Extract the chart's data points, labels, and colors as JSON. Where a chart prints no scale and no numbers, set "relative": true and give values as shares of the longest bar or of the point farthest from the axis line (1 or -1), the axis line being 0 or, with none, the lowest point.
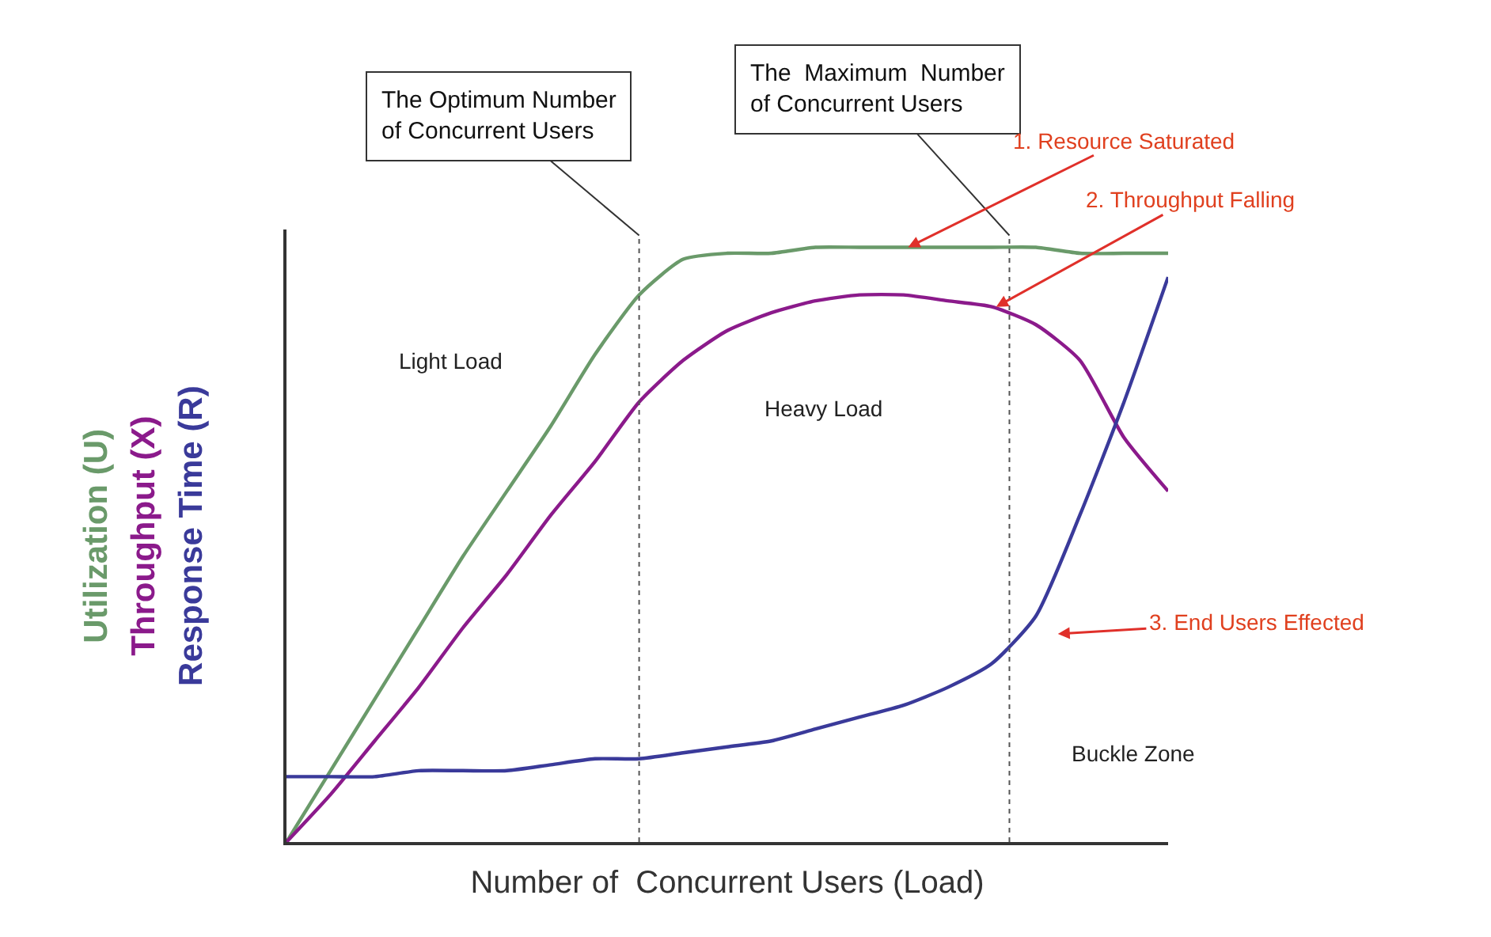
{
  "chart_data": {
    "type": "line",
    "relative": true,
    "xlabel": "Number of  Concurrent Users (Load)",
    "categories": [
      null,
      null,
      null,
      null,
      null,
      null,
      null,
      null,
      null,
      null,
      null,
      null,
      null,
      null,
      null,
      null,
      null,
      null,
      null,
      null,
      null
    ],
    "series": [
      {
        "name": "Utilization (U)",
        "color": "#6a9a6a",
        "values": [
          0,
          0.12,
          0.24,
          0.36,
          0.48,
          0.59,
          0.7,
          0.82,
          0.92,
          0.98,
          0.99,
          0.99,
          1.0,
          1.0,
          1.0,
          1.0,
          1.0,
          1.0,
          0.99,
          0.99,
          0.99
        ]
      },
      {
        "name": "Throughput (X)",
        "color": "#8b1a8b",
        "values": [
          0,
          0.08,
          0.17,
          0.26,
          0.36,
          0.45,
          0.55,
          0.64,
          0.74,
          0.81,
          0.86,
          0.89,
          0.91,
          0.92,
          0.92,
          0.91,
          0.9,
          0.87,
          0.81,
          0.68,
          0.59
        ]
      },
      {
        "name": "Response Time (R)",
        "color": "#3a3a9a",
        "values": [
          0.11,
          0.11,
          0.11,
          0.12,
          0.12,
          0.12,
          0.13,
          0.14,
          0.14,
          0.15,
          0.16,
          0.17,
          0.19,
          0.21,
          0.23,
          0.26,
          0.3,
          0.38,
          0.55,
          0.74,
          0.95
        ]
      }
    ],
    "annotations": [
      "The Optimum Number\nof Concurrent Users",
      "The  Maximum  Number\nof Concurrent Users",
      "Light Load",
      "Heavy Load",
      "Buckle Zone",
      "1. Resource Saturated",
      "2. Throughput Falling",
      "3. End Users Effected"
    ],
    "legend": false,
    "marker": "none",
    "line_style": "solid"
  }
}
